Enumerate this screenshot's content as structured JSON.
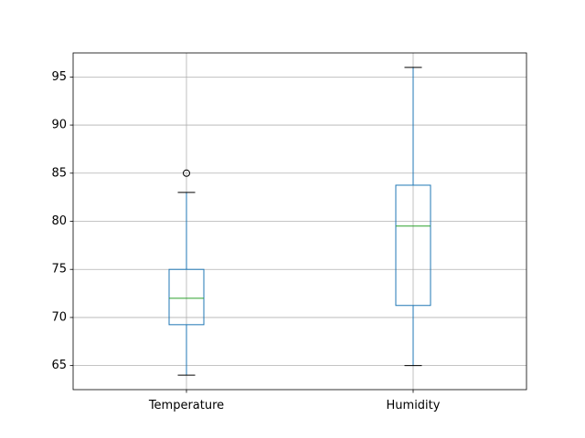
{
  "chart_data": {
    "type": "box",
    "title": "",
    "xlabel": "",
    "ylabel": "",
    "ylim": [
      62.5,
      97.5
    ],
    "y_ticks": [
      65,
      70,
      75,
      80,
      85,
      90,
      95
    ],
    "grid": true,
    "categories": [
      "Temperature",
      "Humidity"
    ],
    "boxes": [
      {
        "category": "Temperature",
        "whisker_low": 64,
        "q1": 69.25,
        "median": 72,
        "q3": 75,
        "whisker_high": 83,
        "outliers": [
          85
        ]
      },
      {
        "category": "Humidity",
        "whisker_low": 65,
        "q1": 71.25,
        "median": 79.5,
        "q3": 83.75,
        "whisker_high": 96,
        "outliers": []
      }
    ],
    "colors": {
      "box": "#1f77b4",
      "median": "#2ca02c",
      "whisker_cap": "#000000",
      "outlier": "#000000",
      "grid": "#b0b0b0"
    }
  }
}
